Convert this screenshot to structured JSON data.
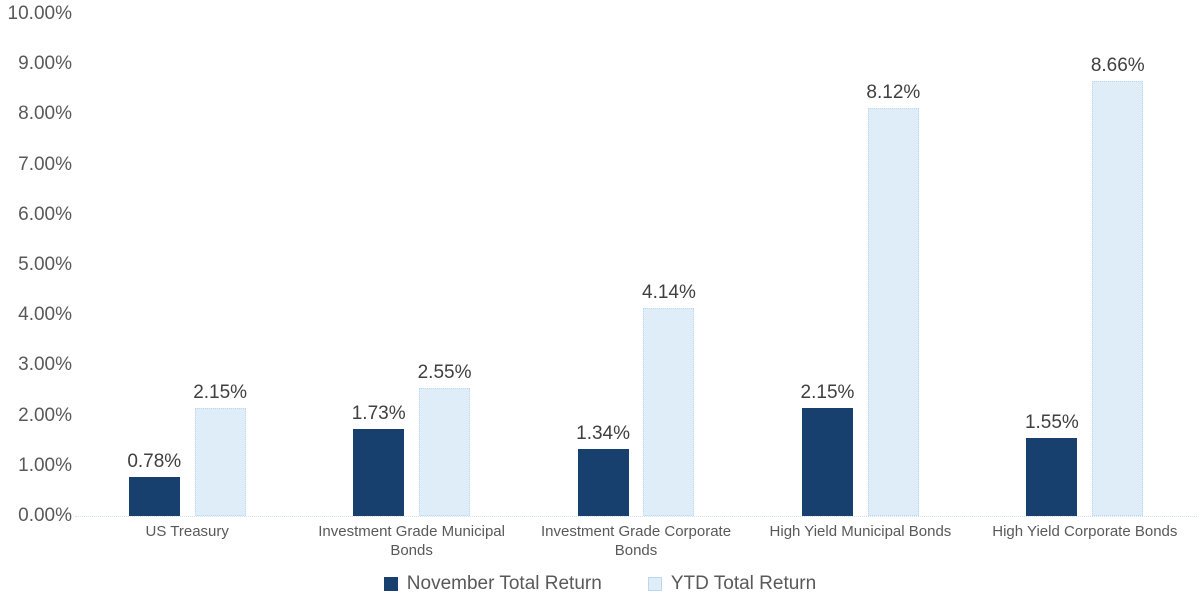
{
  "chart_data": {
    "type": "bar",
    "title": "",
    "xlabel": "",
    "ylabel": "",
    "categories": [
      "US Treasury",
      "Investment Grade Municipal Bonds",
      "Investment Grade Corporate Bonds",
      "High Yield Municipal Bonds",
      "High Yield Corporate Bonds"
    ],
    "series": [
      {
        "name": "November Total Return",
        "color": "#17406E",
        "border_color": "",
        "values": [
          0.78,
          1.73,
          1.34,
          2.15,
          1.55
        ],
        "labels": [
          "0.78%",
          "1.73%",
          "1.34%",
          "2.15%",
          "1.55%"
        ]
      },
      {
        "name": "YTD Total Return",
        "color": "#DEEDF8",
        "border_color": "#BDD7EC",
        "values": [
          2.15,
          2.55,
          4.14,
          8.12,
          8.66
        ],
        "labels": [
          "2.15%",
          "2.55%",
          "4.14%",
          "8.12%",
          "8.66%"
        ]
      }
    ],
    "y_ticks": [
      "10.00%",
      "9.00%",
      "8.00%",
      "7.00%",
      "6.00%",
      "5.00%",
      "4.00%",
      "3.00%",
      "2.00%",
      "1.00%",
      "0.00%"
    ],
    "ylim": [
      0,
      10
    ],
    "grid": false,
    "legend_position": "bottom",
    "colors": {
      "axis_text": "#595959",
      "value_label_text": "#3F3F3F",
      "category_text": "#595959",
      "legend_text": "#595959",
      "baseline": "#CFE2F2",
      "background": "#FFFFFF"
    }
  }
}
